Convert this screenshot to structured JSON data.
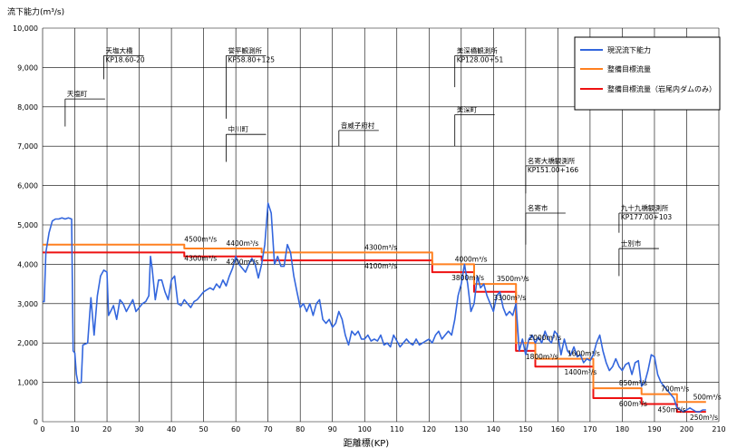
{
  "chart_data": {
    "type": "line",
    "ylabel": "流下能力(m³/s)",
    "xlabel": "距離標(KP)",
    "xlim": [
      0,
      210
    ],
    "ylim": [
      0,
      10000
    ],
    "x_ticks": [
      0,
      10,
      20,
      30,
      40,
      50,
      60,
      70,
      80,
      90,
      100,
      110,
      120,
      130,
      140,
      150,
      160,
      170,
      180,
      190,
      200,
      210
    ],
    "y_ticks": [
      0,
      1000,
      2000,
      3000,
      4000,
      5000,
      6000,
      7000,
      8000,
      9000,
      10000
    ],
    "y_tick_labels": [
      "0",
      "1,000",
      "2,000",
      "3,000",
      "4,000",
      "5,000",
      "6,000",
      "7,000",
      "8,000",
      "9,000",
      "10,000"
    ],
    "grid": true,
    "legend_position": "top-right",
    "series": [
      {
        "name": "現況流下能力",
        "color": "#3366dd",
        "points": [
          [
            0,
            3050
          ],
          [
            0.5,
            3050
          ],
          [
            1,
            4300
          ],
          [
            2,
            4800
          ],
          [
            3,
            5100
          ],
          [
            4,
            5150
          ],
          [
            5,
            5150
          ],
          [
            6,
            5180
          ],
          [
            7,
            5150
          ],
          [
            8,
            5180
          ],
          [
            9,
            5150
          ],
          [
            9.5,
            1800
          ],
          [
            10,
            1750
          ],
          [
            10.5,
            1200
          ],
          [
            11,
            980
          ],
          [
            12,
            1000
          ],
          [
            12.5,
            1950
          ],
          [
            14,
            2000
          ],
          [
            15,
            3150
          ],
          [
            16,
            2200
          ],
          [
            17,
            3200
          ],
          [
            18,
            3700
          ],
          [
            19,
            3850
          ],
          [
            20,
            3800
          ],
          [
            20.5,
            2700
          ],
          [
            22,
            2950
          ],
          [
            23,
            2600
          ],
          [
            24,
            3100
          ],
          [
            25,
            3000
          ],
          [
            26,
            2800
          ],
          [
            27,
            2950
          ],
          [
            28,
            3100
          ],
          [
            29,
            2800
          ],
          [
            30,
            2900
          ],
          [
            31,
            3000
          ],
          [
            32,
            3050
          ],
          [
            33,
            3200
          ],
          [
            33.5,
            4200
          ],
          [
            34,
            3900
          ],
          [
            35,
            3100
          ],
          [
            36,
            3600
          ],
          [
            37,
            3600
          ],
          [
            38,
            3300
          ],
          [
            39,
            3100
          ],
          [
            40,
            3600
          ],
          [
            41,
            3700
          ],
          [
            42,
            3000
          ],
          [
            43,
            2950
          ],
          [
            44,
            3100
          ],
          [
            45,
            3000
          ],
          [
            46,
            2900
          ],
          [
            47,
            3050
          ],
          [
            48,
            3100
          ],
          [
            49,
            3200
          ],
          [
            50,
            3300
          ],
          [
            51,
            3350
          ],
          [
            52,
            3400
          ],
          [
            53,
            3350
          ],
          [
            54,
            3500
          ],
          [
            55,
            3400
          ],
          [
            56,
            3600
          ],
          [
            57,
            3450
          ],
          [
            58,
            3700
          ],
          [
            59,
            3900
          ],
          [
            60,
            4200
          ],
          [
            61,
            4000
          ],
          [
            62,
            3900
          ],
          [
            63,
            3800
          ],
          [
            64,
            4000
          ],
          [
            65,
            4150
          ],
          [
            66,
            4000
          ],
          [
            67,
            3650
          ],
          [
            68,
            4000
          ],
          [
            69,
            4500
          ],
          [
            70,
            5550
          ],
          [
            71,
            5300
          ],
          [
            72,
            4000
          ],
          [
            73,
            4200
          ],
          [
            74,
            3950
          ],
          [
            75,
            3950
          ],
          [
            76,
            4500
          ],
          [
            77,
            4300
          ],
          [
            78,
            3700
          ],
          [
            79,
            3300
          ],
          [
            80,
            2900
          ],
          [
            81,
            3000
          ],
          [
            82,
            2800
          ],
          [
            83,
            3000
          ],
          [
            84,
            2700
          ],
          [
            85,
            3000
          ],
          [
            86,
            3100
          ],
          [
            87,
            2600
          ],
          [
            88,
            2500
          ],
          [
            89,
            2600
          ],
          [
            90,
            2400
          ],
          [
            91,
            2500
          ],
          [
            92,
            2800
          ],
          [
            93,
            2600
          ],
          [
            94,
            2200
          ],
          [
            95,
            1950
          ],
          [
            96,
            2300
          ],
          [
            97,
            2200
          ],
          [
            98,
            2300
          ],
          [
            99,
            2100
          ],
          [
            100,
            2100
          ],
          [
            101,
            2200
          ],
          [
            102,
            2050
          ],
          [
            103,
            2100
          ],
          [
            104,
            2050
          ],
          [
            105,
            2200
          ],
          [
            106,
            1950
          ],
          [
            107,
            2000
          ],
          [
            108,
            1900
          ],
          [
            109,
            2200
          ],
          [
            110,
            2050
          ],
          [
            111,
            1900
          ],
          [
            112,
            2000
          ],
          [
            113,
            2100
          ],
          [
            114,
            2000
          ],
          [
            115,
            1950
          ],
          [
            116,
            2100
          ],
          [
            117,
            1950
          ],
          [
            118,
            2000
          ],
          [
            119,
            2050
          ],
          [
            120,
            2100
          ],
          [
            121,
            2000
          ],
          [
            122,
            2200
          ],
          [
            123,
            2300
          ],
          [
            124,
            2100
          ],
          [
            125,
            2200
          ],
          [
            126,
            2300
          ],
          [
            127,
            2200
          ],
          [
            128,
            2600
          ],
          [
            129,
            3200
          ],
          [
            130,
            3500
          ],
          [
            131,
            4000
          ],
          [
            132,
            3500
          ],
          [
            133,
            2800
          ],
          [
            134,
            3000
          ],
          [
            135,
            3700
          ],
          [
            136,
            3400
          ],
          [
            137,
            3500
          ],
          [
            138,
            3200
          ],
          [
            139,
            3000
          ],
          [
            140,
            2800
          ],
          [
            141,
            3200
          ],
          [
            142,
            3300
          ],
          [
            143,
            2900
          ],
          [
            144,
            2700
          ],
          [
            145,
            2800
          ],
          [
            146,
            2700
          ],
          [
            147,
            3000
          ],
          [
            148,
            1800
          ],
          [
            149,
            2100
          ],
          [
            150,
            1700
          ],
          [
            151,
            2100
          ],
          [
            152,
            2200
          ],
          [
            153,
            2000
          ],
          [
            154,
            2150
          ],
          [
            155,
            2000
          ],
          [
            156,
            2300
          ],
          [
            157,
            2100
          ],
          [
            158,
            2000
          ],
          [
            159,
            2300
          ],
          [
            160,
            2200
          ],
          [
            161,
            1700
          ],
          [
            162,
            2100
          ],
          [
            163,
            1800
          ],
          [
            164,
            1700
          ],
          [
            165,
            1900
          ],
          [
            166,
            1650
          ],
          [
            167,
            1700
          ],
          [
            168,
            1500
          ],
          [
            169,
            1600
          ],
          [
            170,
            1550
          ],
          [
            171,
            1700
          ],
          [
            172,
            2000
          ],
          [
            173,
            2200
          ],
          [
            174,
            1800
          ],
          [
            175,
            1500
          ],
          [
            176,
            1300
          ],
          [
            177,
            1400
          ],
          [
            178,
            1600
          ],
          [
            179,
            1400
          ],
          [
            180,
            1300
          ],
          [
            181,
            1450
          ],
          [
            182,
            1500
          ],
          [
            183,
            1200
          ],
          [
            184,
            1500
          ],
          [
            185,
            1550
          ],
          [
            186,
            900
          ],
          [
            187,
            1000
          ],
          [
            188,
            1300
          ],
          [
            189,
            1700
          ],
          [
            190,
            1650
          ],
          [
            191,
            1200
          ],
          [
            192,
            1000
          ],
          [
            193,
            900
          ],
          [
            194,
            800
          ],
          [
            195,
            700
          ],
          [
            196,
            600
          ],
          [
            197,
            350
          ],
          [
            198,
            300
          ],
          [
            199,
            250
          ],
          [
            200,
            300
          ],
          [
            201,
            350
          ],
          [
            202,
            300
          ],
          [
            203,
            250
          ],
          [
            204,
            250
          ],
          [
            205,
            300
          ],
          [
            206,
            300
          ]
        ]
      },
      {
        "name": "整備目標流量",
        "color": "#ff8020",
        "points": [
          [
            0,
            4500
          ],
          [
            44,
            4500
          ],
          [
            44,
            4400
          ],
          [
            68,
            4400
          ],
          [
            68,
            4300
          ],
          [
            121,
            4300
          ],
          [
            121,
            4000
          ],
          [
            134,
            4000
          ],
          [
            134,
            3500
          ],
          [
            147,
            3500
          ],
          [
            147,
            2000
          ],
          [
            153,
            2000
          ],
          [
            153,
            1600
          ],
          [
            171,
            1600
          ],
          [
            171,
            850
          ],
          [
            186,
            850
          ],
          [
            186,
            700
          ],
          [
            197,
            700
          ],
          [
            197,
            500
          ],
          [
            206,
            500
          ]
        ]
      },
      {
        "name": "整備目標流量（岩尾内ダムのみ）",
        "color": "#ee1111",
        "points": [
          [
            0,
            4300
          ],
          [
            44,
            4300
          ],
          [
            44,
            4200
          ],
          [
            68,
            4200
          ],
          [
            68,
            4100
          ],
          [
            121,
            4100
          ],
          [
            121,
            3800
          ],
          [
            134,
            3800
          ],
          [
            134,
            3300
          ],
          [
            147,
            3300
          ],
          [
            147,
            1800
          ],
          [
            153,
            1800
          ],
          [
            153,
            1400
          ],
          [
            171,
            1400
          ],
          [
            171,
            600
          ],
          [
            186,
            600
          ],
          [
            186,
            450
          ],
          [
            197,
            450
          ],
          [
            197,
            250
          ],
          [
            206,
            250
          ]
        ]
      }
    ],
    "flow_labels": [
      {
        "text": "4500m³/s",
        "x": 44,
        "y": 4500,
        "color": "orange"
      },
      {
        "text": "4300m³/s",
        "x": 44,
        "y": 4300,
        "color": "red"
      },
      {
        "text": "4400m³/s",
        "x": 57,
        "y": 4400,
        "color": "orange"
      },
      {
        "text": "4200m³/s",
        "x": 57,
        "y": 4200,
        "color": "red"
      },
      {
        "text": "4300m³/s",
        "x": 100,
        "y": 4300,
        "color": "orange"
      },
      {
        "text": "4100m³/s",
        "x": 100,
        "y": 4100,
        "color": "red"
      },
      {
        "text": "4000m³/s",
        "x": 128,
        "y": 4000,
        "color": "orange"
      },
      {
        "text": "3800m³/s",
        "x": 127,
        "y": 3800,
        "color": "red"
      },
      {
        "text": "3500m³/s",
        "x": 141,
        "y": 3500,
        "color": "orange"
      },
      {
        "text": "3300m³/s",
        "x": 140,
        "y": 3300,
        "color": "red"
      },
      {
        "text": "2000m³/s",
        "x": 151,
        "y": 2000,
        "color": "orange"
      },
      {
        "text": "1800m³/s",
        "x": 150,
        "y": 1800,
        "color": "red"
      },
      {
        "text": "1600m³/s",
        "x": 163,
        "y": 1600,
        "color": "orange"
      },
      {
        "text": "1400m³/s",
        "x": 162,
        "y": 1400,
        "color": "red"
      },
      {
        "text": "850m³/s",
        "x": 179,
        "y": 850,
        "color": "orange"
      },
      {
        "text": "600m³/s",
        "x": 179,
        "y": 600,
        "color": "red"
      },
      {
        "text": "700m³/s",
        "x": 192,
        "y": 700,
        "color": "orange"
      },
      {
        "text": "450m³/s",
        "x": 191,
        "y": 450,
        "color": "red"
      },
      {
        "text": "500m³/s",
        "x": 202,
        "y": 500,
        "color": "orange"
      },
      {
        "text": "250m³/s",
        "x": 201,
        "y": 250,
        "color": "red"
      }
    ],
    "annotations": [
      {
        "lines": [
          "天塩町"
        ],
        "x": 7,
        "y_top": 8200,
        "y_bottom": 7500
      },
      {
        "lines": [
          "天塩大橋",
          "KP18.60-20"
        ],
        "x": 19,
        "y_top": 9300,
        "y_bottom": 8700
      },
      {
        "lines": [
          "誉平観測所",
          "KP58.80+125"
        ],
        "x": 57,
        "y_top": 9300,
        "y_bottom": 7700
      },
      {
        "lines": [
          "中川町"
        ],
        "x": 57,
        "y_top": 7300,
        "y_bottom": 6600
      },
      {
        "lines": [
          "音威子府村"
        ],
        "x": 92,
        "y_top": 7400,
        "y_bottom": 7000
      },
      {
        "lines": [
          "美深橋観測所",
          "KP128.00+51"
        ],
        "x": 128,
        "y_top": 9300,
        "y_bottom": 8500
      },
      {
        "lines": [
          "美深町"
        ],
        "x": 128,
        "y_top": 7800,
        "y_bottom": 7000
      },
      {
        "lines": [
          "名寄大橋観測所",
          "KP151.00+166"
        ],
        "x": 150,
        "y_top": 6500,
        "y_bottom": 5800
      },
      {
        "lines": [
          "名寄市"
        ],
        "x": 150,
        "y_top": 5300,
        "y_bottom": 4500
      },
      {
        "lines": [
          "九十九橋観測所",
          "KP177.00+103"
        ],
        "x": 179,
        "y_top": 5300,
        "y_bottom": 4800
      },
      {
        "lines": [
          "士別市"
        ],
        "x": 179,
        "y_top": 4400,
        "y_bottom": 3700
      }
    ]
  }
}
